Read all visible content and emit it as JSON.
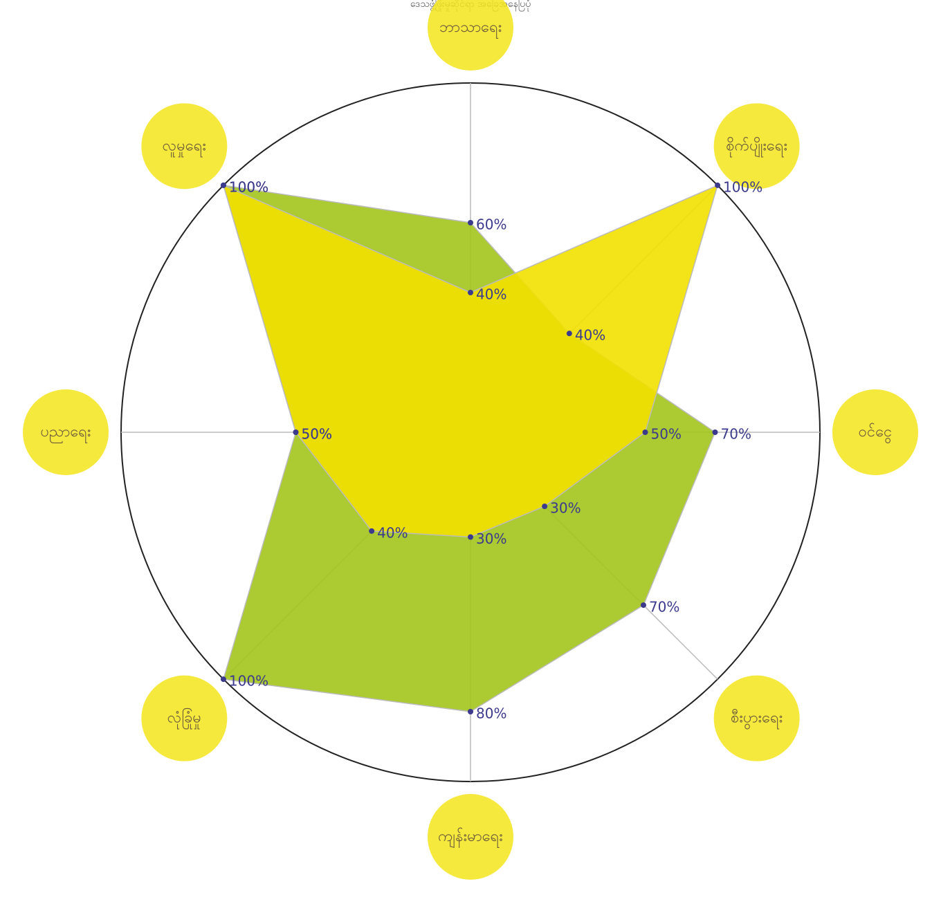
{
  "chart_data": {
    "type": "radar",
    "title": "ဒေသဖွံ့ဖြိုးမှုဆိုင်ရာ အခြေအနေပြပုံ",
    "categories": [
      "ဘာသာရေး",
      "စိုက်ပျိုးရေး",
      "ဝင်ငွေ",
      "စီးပွားရေး",
      "ကျန်းမာရေး",
      "လုံခြုံမှု",
      "ပညာရေး",
      "လူမှုရေး"
    ],
    "rlim": [
      0,
      100
    ],
    "series": [
      {
        "color": "#a3c41c",
        "values": [
          60,
          40,
          70,
          70,
          80,
          100,
          50,
          100
        ],
        "value_labels": [
          "60%",
          "40%",
          "70%",
          "70%",
          "80%",
          "100%",
          "50%",
          "100%"
        ]
      },
      {
        "color": "#f2e000",
        "values": [
          40,
          100,
          50,
          30,
          30,
          40,
          50,
          100
        ],
        "value_labels": [
          "40%",
          "100%",
          "50%",
          "30%",
          "30%",
          "40%",
          "50%",
          "100%"
        ]
      }
    ]
  }
}
